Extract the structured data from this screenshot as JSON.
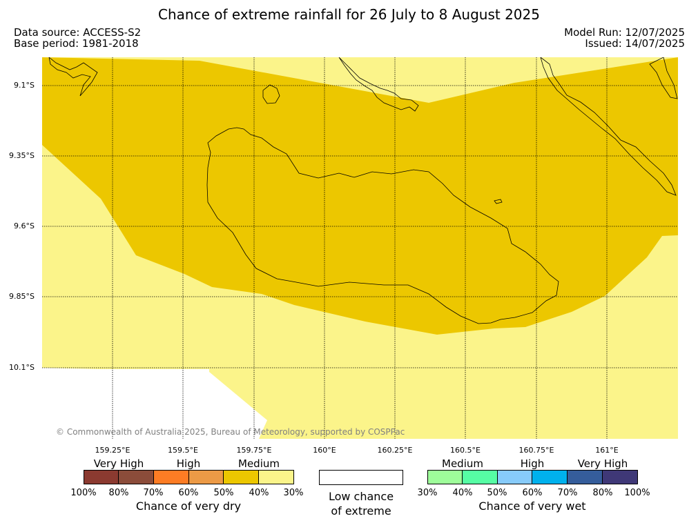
{
  "title": "Chance of extreme rainfall for 26 July to 8 August 2025",
  "meta": {
    "data_source": "Data source: ACCESS-S2",
    "base_period": "Base period: 1981-2018",
    "model_run": "Model Run: 12/07/2025",
    "issued": "Issued: 14/07/2025"
  },
  "map": {
    "lat_labels": [
      "9.1°S",
      "9.35°S",
      "9.6°S",
      "9.85°S",
      "10.1°S"
    ],
    "lon_labels": [
      "159.25°E",
      "159.5°E",
      "159.75°E",
      "160°E",
      "160.25°E",
      "160.5°E",
      "160.75°E",
      "161°E"
    ],
    "copyright": "© Commonwealth of Australia 2025, Bureau of Meteorology, supported by COSPPac",
    "colors": {
      "medium_dry_40_50": "#ecc700",
      "low_dry_30_40": "#fbf48a",
      "land_outline": "#000000",
      "grid": "#000000"
    }
  },
  "legend": {
    "dry": {
      "categories": [
        "Very High",
        "High",
        "Medium"
      ],
      "colors": [
        "#8b3a30",
        "#8b4c3a",
        "#fd7c24",
        "#ec9a46",
        "#ecc700",
        "#fbf48a"
      ],
      "ticks": [
        "100%",
        "80%",
        "70%",
        "60%",
        "50%",
        "40%",
        "30%"
      ],
      "title": "Chance of very dry"
    },
    "low": {
      "line1": "Low chance",
      "line2": "of extreme"
    },
    "wet": {
      "categories": [
        "Medium",
        "High",
        "Very High"
      ],
      "colors": [
        "#9efd9a",
        "#56fda4",
        "#87cbfa",
        "#00b1ed",
        "#355d9b",
        "#3f3877"
      ],
      "ticks": [
        "30%",
        "40%",
        "50%",
        "60%",
        "70%",
        "80%",
        "100%"
      ],
      "title": "Chance of very wet"
    }
  }
}
